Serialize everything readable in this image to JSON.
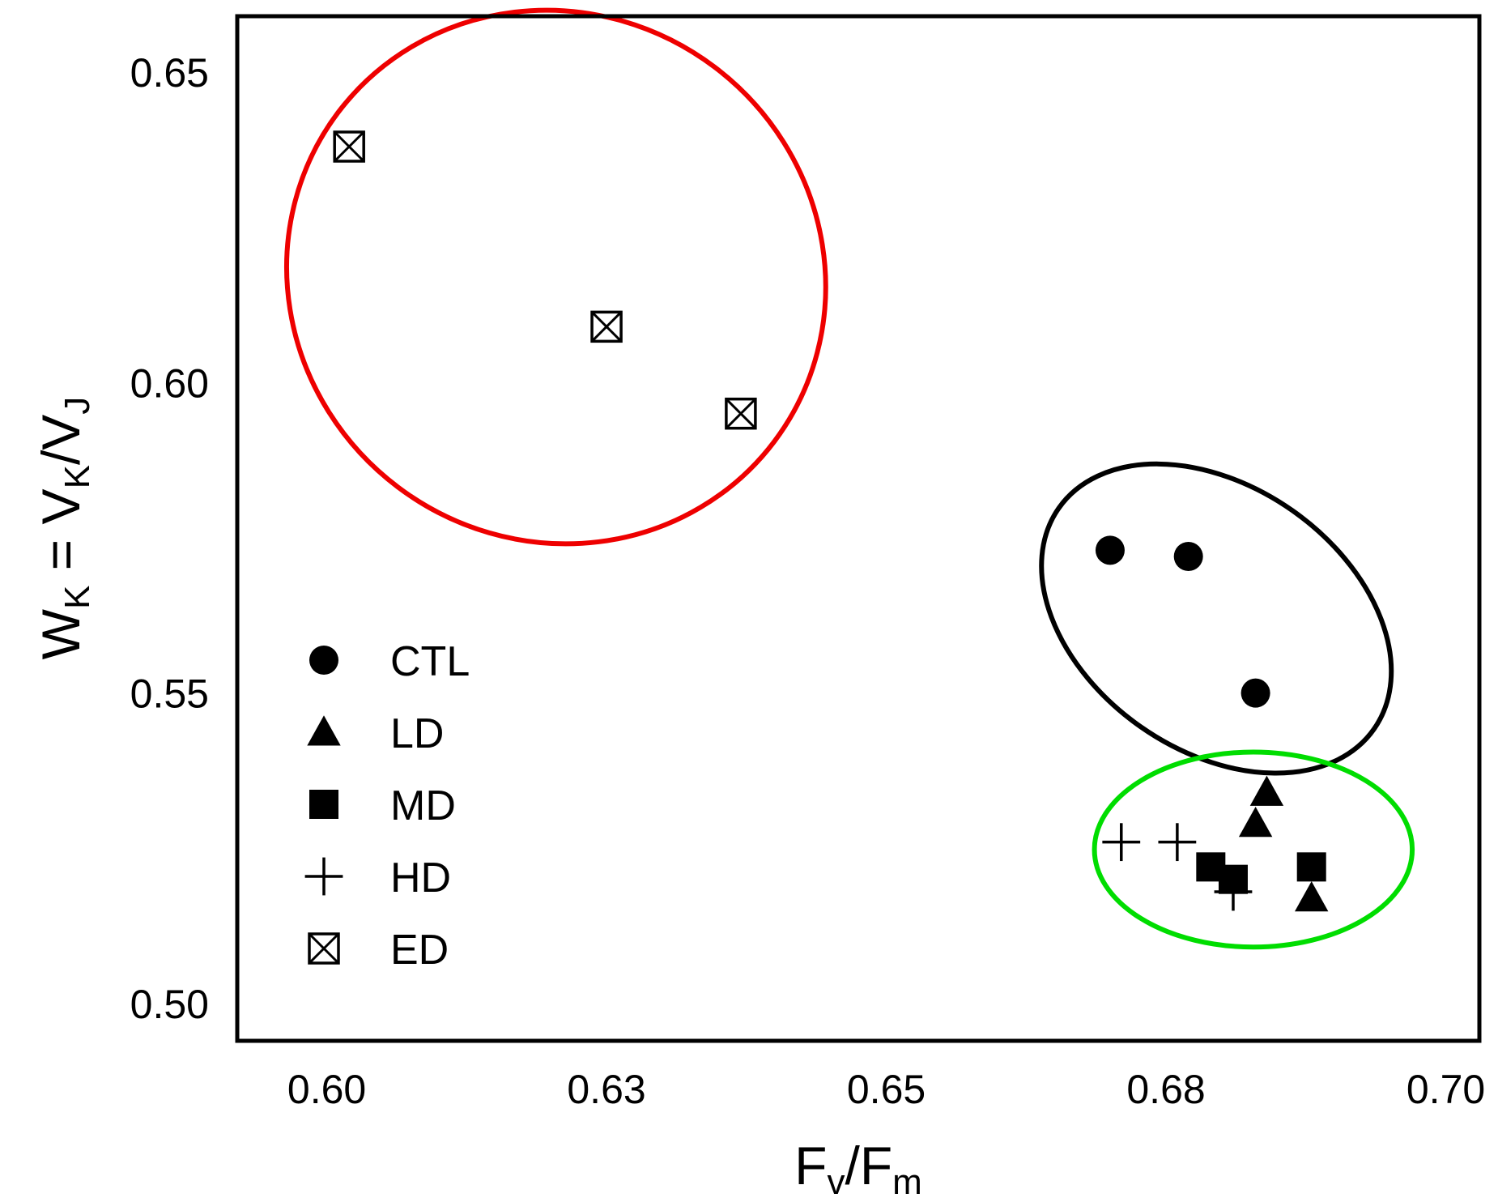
{
  "chart_data": {
    "type": "scatter",
    "title": "",
    "xlabel": "Fv/Fm",
    "ylabel": "WK = VK/VJ",
    "xlabel_parts": {
      "main": "F",
      "sub1": "v",
      "slash": "/",
      "main2": "F",
      "sub2": "m"
    },
    "ylabel_parts": {
      "w": "W",
      "w_sub": "K",
      "eq": " = V",
      "vk_sub": "K",
      "slash": "/V",
      "vj_sub": "J"
    },
    "xlim": [
      0.592,
      0.703
    ],
    "ylim": [
      0.494,
      0.659
    ],
    "x_ticks": [
      {
        "value": 0.6,
        "label": "0.60"
      },
      {
        "value": 0.625,
        "label": "0.63"
      },
      {
        "value": 0.65,
        "label": "0.65"
      },
      {
        "value": 0.675,
        "label": "0.68"
      },
      {
        "value": 0.7,
        "label": "0.70"
      }
    ],
    "y_ticks": [
      {
        "value": 0.65,
        "label": "0.65"
      },
      {
        "value": 0.6,
        "label": "0.60"
      },
      {
        "value": 0.55,
        "label": "0.55"
      },
      {
        "value": 0.5,
        "label": "0.50"
      }
    ],
    "grid": false,
    "legend_position": "lower-left",
    "series": [
      {
        "name": "CTL",
        "marker": "circle",
        "points": [
          [
            0.67,
            0.573
          ],
          [
            0.677,
            0.572
          ],
          [
            0.683,
            0.55
          ]
        ]
      },
      {
        "name": "LD",
        "marker": "triangle",
        "points": [
          [
            0.684,
            0.534
          ],
          [
            0.683,
            0.529
          ],
          [
            0.688,
            0.517
          ]
        ]
      },
      {
        "name": "MD",
        "marker": "square",
        "points": [
          [
            0.679,
            0.522
          ],
          [
            0.681,
            0.52
          ],
          [
            0.688,
            0.522
          ]
        ]
      },
      {
        "name": "HD",
        "marker": "plus",
        "points": [
          [
            0.671,
            0.526
          ],
          [
            0.676,
            0.526
          ],
          [
            0.681,
            0.518
          ]
        ]
      },
      {
        "name": "ED",
        "marker": "boxx",
        "points": [
          [
            0.602,
            0.638
          ],
          [
            0.625,
            0.609
          ],
          [
            0.637,
            0.595
          ]
        ]
      }
    ],
    "annotations": [
      {
        "name": "ED cluster ellipse",
        "color": "#ee0000",
        "center": [
          0.6205,
          0.617
        ],
        "rx_data": 0.0235,
        "ry_data": 0.044,
        "rotation_deg": 37
      },
      {
        "name": "CTL cluster ellipse",
        "color": "#000000",
        "center": [
          0.6795,
          0.562
        ],
        "rx_data": 0.0118,
        "ry_data": 0.031,
        "rotation_deg": 35
      },
      {
        "name": "stress cluster ellipse",
        "color": "#00dd00",
        "center": [
          0.6828,
          0.5248
        ],
        "rx_data": 0.0142,
        "ry_data": 0.0157,
        "rotation_deg": 0
      }
    ]
  }
}
